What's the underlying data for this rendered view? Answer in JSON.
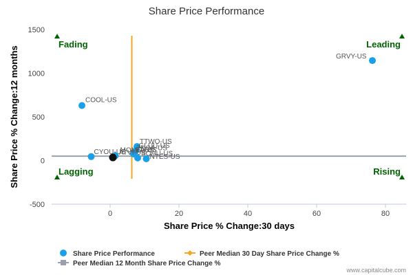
{
  "chart_data": {
    "type": "scatter",
    "title": "Share Price Performance",
    "xlabel": "Share Price % Change:30 days",
    "ylabel": "Share Price % Change:12 months",
    "xlim": [
      -17,
      86
    ],
    "ylim": [
      -500,
      1500
    ],
    "xticks": [
      0,
      20,
      40,
      60,
      80
    ],
    "yticks": [
      -500,
      0,
      500,
      1000,
      1500
    ],
    "grid": false,
    "legend_position": "bottom-left",
    "series": [
      {
        "name": "Share Price Performance",
        "color": "#1aa0e8",
        "points": [
          {
            "label": "GRVY-US",
            "x": 76.2,
            "y": 1145
          },
          {
            "label": "COOL-US",
            "x": -8.2,
            "y": 630
          },
          {
            "label": "CYOU-US",
            "x": -5.5,
            "y": 45
          },
          {
            "label": "TTWO-US",
            "x": 7.8,
            "y": 160
          },
          {
            "label": "GLUU-US",
            "x": 7.5,
            "y": 115
          },
          {
            "label": "ZNGA-US",
            "x": 7.0,
            "y": 95
          },
          {
            "label": "EA-US",
            "x": 6.8,
            "y": 75
          },
          {
            "label": "SOHU-US",
            "x": 8.0,
            "y": 30
          },
          {
            "label": "NTES-US",
            "x": 10.5,
            "y": 20
          },
          {
            "label": "MOMO-US",
            "x": 1.5,
            "y": 55
          },
          {
            "label": "ATVI-US",
            "x": 1.2,
            "y": 45
          },
          {
            "label": "",
            "x": 0.8,
            "y": 35
          }
        ]
      }
    ],
    "peer_median_30d": 6.3,
    "peer_median_12m": 50,
    "peer_median_30d_color": "#f5a623",
    "peer_median_12m_color": "#9aa0ad",
    "highlight_color": "#111111",
    "quadrant_marker_color": "#006400"
  },
  "quadrants": {
    "top_left": "Fading",
    "top_right": "Leading",
    "bottom_left": "Lagging",
    "bottom_right": "Rising"
  },
  "legend": {
    "item1": "Share Price Performance",
    "item2": "Peer Median 30 Day Share Price Change %",
    "item3": "Peer Median 12 Month Share Price Change %"
  },
  "credit": "www.capitalcube.com"
}
